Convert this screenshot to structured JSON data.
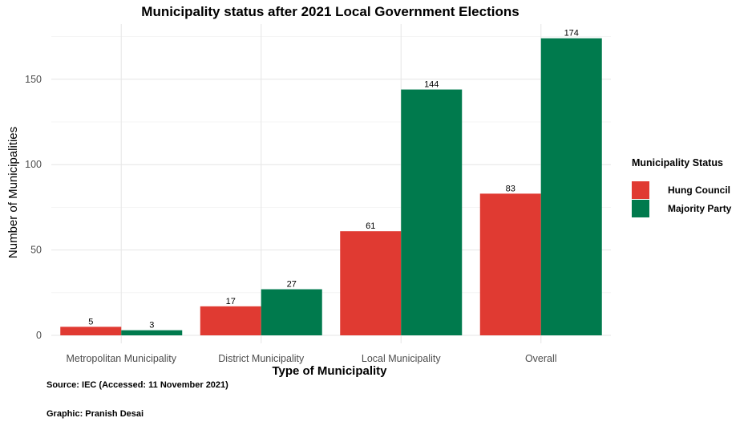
{
  "chart_data": {
    "type": "bar",
    "title": "Municipality status after 2021 Local Government Elections",
    "xlabel": "Type of Municipality",
    "ylabel": "Number of Municipalities",
    "categories": [
      "Metropolitan Municipality",
      "District Municipality",
      "Local Municipality",
      "Overall"
    ],
    "series": [
      {
        "name": "Hung Council",
        "values": [
          5,
          17,
          61,
          83
        ],
        "color": "#e03a32"
      },
      {
        "name": "Majority Party",
        "values": [
          3,
          27,
          144,
          174
        ],
        "color": "#007a4d"
      }
    ],
    "yticks": [
      0,
      50,
      100,
      150
    ],
    "ylim": [
      0,
      182
    ],
    "grid": true,
    "legend": {
      "title": "Municipality Status",
      "position": "right"
    }
  },
  "captions": {
    "source": "Source: IEC (Accessed: 11 November 2021)",
    "graphic": "Graphic: Pranish Desai"
  }
}
